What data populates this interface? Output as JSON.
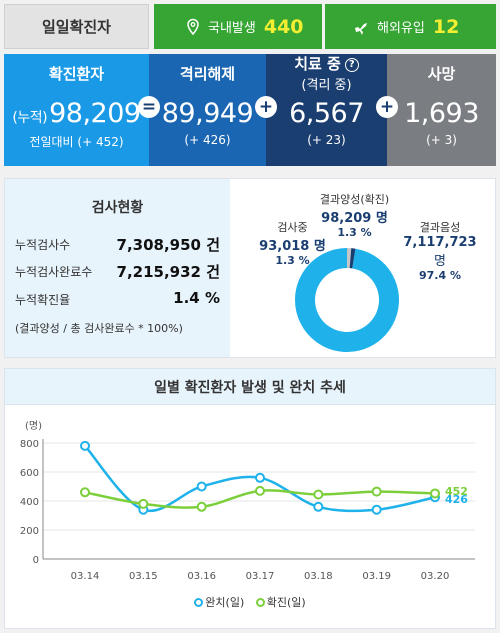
{
  "top": {
    "daily_label": "일일확진자",
    "domestic_label": "국내발생",
    "domestic_value": "440",
    "overseas_label": "해외유입",
    "overseas_value": "12"
  },
  "stats": {
    "confirmed": {
      "title": "확진환자",
      "prefix": "(누적)",
      "value": "98,209",
      "sub": "전일대비 (+ 452)"
    },
    "released": {
      "title": "격리해제",
      "value": "89,949",
      "sub": "(+ 426)"
    },
    "treating": {
      "title": "치료 중",
      "title2": "(격리 중)",
      "value": "6,567",
      "sub": "(+ 23)"
    },
    "deaths": {
      "title": "사망",
      "value": "1,693",
      "sub": "(+ 3)"
    },
    "op_equals": "=",
    "op_plus": "+"
  },
  "test": {
    "title": "검사현황",
    "rows": [
      {
        "label": "누적검사수",
        "value": "7,308,950 건"
      },
      {
        "label": "누적검사완료수",
        "value": "7,215,932 건"
      },
      {
        "label": "누적확진율",
        "value": "1.4 %"
      }
    ],
    "note": "(결과양성 / 총 검사완료수 * 100%)",
    "pie": {
      "testing": {
        "label": "검사중",
        "value": "93,018 명",
        "pct": "1.3 %"
      },
      "positive": {
        "label": "결과양성(확진)",
        "value": "98,209 명",
        "pct": "1.3 %"
      },
      "negative": {
        "label": "결과음성",
        "value": "7,117,723",
        "unit": "명",
        "pct": "97.4 %"
      },
      "fractions": {
        "testing": 0.013,
        "positive": 0.013,
        "negative": 0.974
      },
      "colors": {
        "testing": "#c7c7c7",
        "positive": "#1b3e70",
        "negative": "#1fb2ea"
      }
    }
  },
  "chart": {
    "title": "일별 확진환자 발생 및 완치 추세",
    "legend_release": "완치(일)",
    "legend_confirm": "확진(일)"
  },
  "chart_data": {
    "type": "line",
    "title": "일별 확진환자 발생 및 완치 추세",
    "ylabel": "(명)",
    "xlabel": "",
    "categories": [
      "03.14",
      "03.15",
      "03.16",
      "03.17",
      "03.18",
      "03.19",
      "03.20"
    ],
    "ylim": [
      0,
      800
    ],
    "yticks": [
      0,
      200,
      400,
      600,
      800
    ],
    "series": [
      {
        "name": "완치(일)",
        "color": "#1fb2ea",
        "values": [
          780,
          340,
          500,
          560,
          360,
          340,
          426
        ]
      },
      {
        "name": "확진(일)",
        "color": "#7ccf3b",
        "values": [
          460,
          380,
          360,
          470,
          445,
          465,
          452
        ]
      }
    ],
    "end_labels": [
      "426",
      "452"
    ],
    "grid": true
  }
}
